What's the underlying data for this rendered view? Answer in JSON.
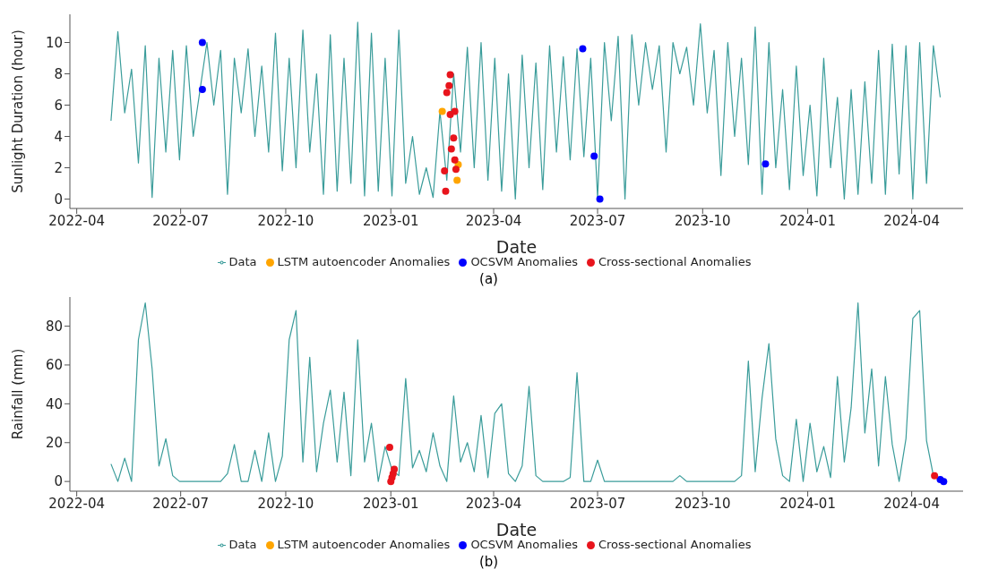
{
  "chart_data": [
    {
      "type": "line",
      "xlabel": "Date",
      "ylabel": "Sunlight Duration (hour)",
      "annotations": [
        "(a)"
      ],
      "xlim": [
        "2022-03-26",
        "2024-05-16"
      ],
      "xticks": [
        "2022-04",
        "2022-07",
        "2022-10",
        "2023-01",
        "2023-04",
        "2023-07",
        "2023-10",
        "2024-01",
        "2024-04"
      ],
      "ylim": [
        -0.6,
        11.8
      ],
      "yticks": [
        0,
        2,
        4,
        6,
        8,
        10
      ],
      "grid": false,
      "legend": "bottom",
      "x": [
        "2022-05-01",
        "2022-05-07",
        "2022-05-13",
        "2022-05-19",
        "2022-05-25",
        "2022-05-31",
        "2022-06-06",
        "2022-06-12",
        "2022-06-18",
        "2022-06-24",
        "2022-06-30",
        "2022-07-06",
        "2022-07-12",
        "2022-07-18",
        "2022-07-24",
        "2022-07-30",
        "2022-08-05",
        "2022-08-11",
        "2022-08-17",
        "2022-08-23",
        "2022-08-29",
        "2022-09-04",
        "2022-09-10",
        "2022-09-16",
        "2022-09-22",
        "2022-09-28",
        "2022-10-04",
        "2022-10-10",
        "2022-10-16",
        "2022-10-22",
        "2022-10-28",
        "2022-11-03",
        "2022-11-09",
        "2022-11-15",
        "2022-11-21",
        "2022-11-27",
        "2022-12-03",
        "2022-12-09",
        "2022-12-15",
        "2022-12-21",
        "2022-12-27",
        "2023-01-02",
        "2023-01-08",
        "2023-01-14",
        "2023-01-20",
        "2023-01-26",
        "2023-02-01",
        "2023-02-07",
        "2023-02-13",
        "2023-02-19",
        "2023-02-25",
        "2023-03-03",
        "2023-03-09",
        "2023-03-15",
        "2023-03-21",
        "2023-03-27",
        "2023-04-02",
        "2023-04-08",
        "2023-04-14",
        "2023-04-20",
        "2023-04-26",
        "2023-05-02",
        "2023-05-08",
        "2023-05-14",
        "2023-05-20",
        "2023-05-26",
        "2023-06-01",
        "2023-06-07",
        "2023-06-13",
        "2023-06-19",
        "2023-06-25",
        "2023-07-01",
        "2023-07-07",
        "2023-07-13",
        "2023-07-19",
        "2023-07-25",
        "2023-07-31",
        "2023-08-06",
        "2023-08-12",
        "2023-08-18",
        "2023-08-24",
        "2023-08-30",
        "2023-09-05",
        "2023-09-11",
        "2023-09-17",
        "2023-09-23",
        "2023-09-29",
        "2023-10-05",
        "2023-10-11",
        "2023-10-17",
        "2023-10-23",
        "2023-10-29",
        "2023-11-04",
        "2023-11-10",
        "2023-11-16",
        "2023-11-22",
        "2023-11-28",
        "2023-12-04",
        "2023-12-10",
        "2023-12-16",
        "2023-12-22",
        "2023-12-28",
        "2024-01-03",
        "2024-01-09",
        "2024-01-15",
        "2024-01-21",
        "2024-01-27",
        "2024-02-02",
        "2024-02-08",
        "2024-02-14",
        "2024-02-20",
        "2024-02-26",
        "2024-03-03",
        "2024-03-09",
        "2024-03-15",
        "2024-03-21",
        "2024-03-27",
        "2024-04-02",
        "2024-04-08",
        "2024-04-14",
        "2024-04-20",
        "2024-04-26"
      ],
      "series": [
        {
          "name": "Data",
          "color": "#3a9c9a",
          "marker": "none",
          "values": [
            5,
            10.7,
            5.5,
            8.3,
            2.3,
            9.8,
            0.1,
            9,
            3,
            9.5,
            2.5,
            9.8,
            4,
            7,
            10,
            6,
            9.5,
            0.3,
            9,
            5.5,
            9.6,
            4,
            8.5,
            3,
            10.6,
            1.8,
            9,
            2,
            10.8,
            3,
            8,
            0.3,
            10.5,
            0.5,
            9,
            1,
            11.3,
            0.2,
            10.6,
            0.5,
            9,
            0.2,
            10.8,
            1,
            4,
            0.3,
            2,
            0.1,
            5.6,
            1.2,
            8,
            3,
            9.7,
            2,
            10,
            1.2,
            9,
            0.5,
            8,
            0,
            9.2,
            2,
            8.7,
            0.6,
            9.8,
            3,
            9.1,
            2.5,
            9.6,
            2.7,
            9,
            0.1,
            10,
            5,
            10.4,
            0,
            10.5,
            6,
            10,
            7,
            9.8,
            3,
            10,
            8,
            9.7,
            6,
            11.2,
            5.5,
            9.5,
            1.5,
            10,
            4,
            9,
            2.2,
            11,
            0.3,
            10,
            2,
            7,
            0.6,
            8.5,
            1.5,
            6,
            0.2,
            9,
            2,
            6.5,
            0,
            7,
            0.3,
            7.5,
            1,
            9.5,
            0.3,
            9.9,
            1.6,
            9.8,
            0,
            10,
            1,
            9.8,
            6.5
          ]
        },
        {
          "name": "LSTM autoencoder Anomalies",
          "type": "scatter",
          "marker": "circle",
          "color": "#ffa500",
          "x": [
            "2023-02-15",
            "2023-03-01",
            "2023-02-28"
          ],
          "values": [
            5.6,
            2.2,
            1.2
          ]
        },
        {
          "name": "OCSVM Anomalies",
          "type": "scatter",
          "marker": "circle",
          "color": "#0000ff",
          "x": [
            "2022-07-20",
            "2022-07-20",
            "2023-06-18",
            "2023-06-28",
            "2023-07-03",
            "2023-11-25"
          ],
          "values": [
            10,
            7,
            9.6,
            2.75,
            0,
            2.25
          ]
        },
        {
          "name": "Cross-sectional Anomalies",
          "type": "scatter",
          "marker": "circle",
          "color": "#e8141c",
          "x": [
            "2023-02-22",
            "2023-02-21",
            "2023-02-19",
            "2023-02-22",
            "2023-02-26",
            "2023-02-25",
            "2023-02-23",
            "2023-02-26",
            "2023-02-27",
            "2023-02-17",
            "2023-02-18"
          ],
          "values": [
            7.95,
            7.25,
            6.8,
            5.4,
            5.6,
            3.9,
            3.2,
            2.5,
            1.9,
            1.8,
            0.5
          ]
        }
      ]
    },
    {
      "type": "line",
      "xlabel": "Date",
      "ylabel": "Rainfall (mm)",
      "annotations": [
        "(b)"
      ],
      "xlim": [
        "2022-03-26",
        "2024-05-16"
      ],
      "xticks": [
        "2022-04",
        "2022-07",
        "2022-10",
        "2023-01",
        "2023-04",
        "2023-07",
        "2023-10",
        "2024-01",
        "2024-04"
      ],
      "ylim": [
        -5,
        95
      ],
      "yticks": [
        0,
        20,
        40,
        60,
        80
      ],
      "grid": false,
      "legend": "bottom",
      "x": [
        "2022-05-01",
        "2022-05-07",
        "2022-05-13",
        "2022-05-19",
        "2022-05-25",
        "2022-05-31",
        "2022-06-06",
        "2022-06-12",
        "2022-06-18",
        "2022-06-24",
        "2022-06-30",
        "2022-07-06",
        "2022-07-12",
        "2022-07-18",
        "2022-07-24",
        "2022-07-30",
        "2022-08-05",
        "2022-08-11",
        "2022-08-17",
        "2022-08-23",
        "2022-08-29",
        "2022-09-04",
        "2022-09-10",
        "2022-09-16",
        "2022-09-22",
        "2022-09-28",
        "2022-10-04",
        "2022-10-10",
        "2022-10-16",
        "2022-10-22",
        "2022-10-28",
        "2022-11-03",
        "2022-11-09",
        "2022-11-15",
        "2022-11-21",
        "2022-11-27",
        "2022-12-03",
        "2022-12-09",
        "2022-12-15",
        "2022-12-21",
        "2022-12-27",
        "2023-01-02",
        "2023-01-08",
        "2023-01-14",
        "2023-01-20",
        "2023-01-26",
        "2023-02-01",
        "2023-02-07",
        "2023-02-13",
        "2023-02-19",
        "2023-02-25",
        "2023-03-03",
        "2023-03-09",
        "2023-03-15",
        "2023-03-21",
        "2023-03-27",
        "2023-04-02",
        "2023-04-08",
        "2023-04-14",
        "2023-04-20",
        "2023-04-26",
        "2023-05-02",
        "2023-05-08",
        "2023-05-14",
        "2023-05-20",
        "2023-05-26",
        "2023-06-01",
        "2023-06-07",
        "2023-06-13",
        "2023-06-19",
        "2023-06-25",
        "2023-07-01",
        "2023-07-07",
        "2023-07-13",
        "2023-07-19",
        "2023-07-25",
        "2023-07-31",
        "2023-08-06",
        "2023-08-12",
        "2023-08-18",
        "2023-08-24",
        "2023-08-30",
        "2023-09-05",
        "2023-09-11",
        "2023-09-17",
        "2023-09-23",
        "2023-09-29",
        "2023-10-05",
        "2023-10-11",
        "2023-10-17",
        "2023-10-23",
        "2023-10-29",
        "2023-11-04",
        "2023-11-10",
        "2023-11-16",
        "2023-11-22",
        "2023-11-28",
        "2023-12-04",
        "2023-12-10",
        "2023-12-16",
        "2023-12-22",
        "2023-12-28",
        "2024-01-03",
        "2024-01-09",
        "2024-01-15",
        "2024-01-21",
        "2024-01-27",
        "2024-02-02",
        "2024-02-08",
        "2024-02-14",
        "2024-02-20",
        "2024-02-26",
        "2024-03-03",
        "2024-03-09",
        "2024-03-15",
        "2024-03-21",
        "2024-03-27",
        "2024-04-02",
        "2024-04-08",
        "2024-04-14",
        "2024-04-20",
        "2024-04-26"
      ],
      "series": [
        {
          "name": "Data",
          "color": "#3a9c9a",
          "marker": "none",
          "values": [
            9,
            0,
            12,
            0,
            73,
            92,
            58,
            8,
            22,
            3,
            0,
            0,
            0,
            0,
            0,
            0,
            0,
            4,
            19,
            0,
            0,
            16,
            0,
            25,
            0,
            13,
            73,
            88,
            10,
            64,
            5,
            30,
            47,
            10,
            46,
            3,
            73,
            10,
            30,
            0,
            18,
            6,
            3,
            53,
            7,
            16,
            5,
            25,
            8,
            0,
            44,
            10,
            20,
            5,
            34,
            2,
            35,
            40,
            4,
            0,
            8,
            49,
            3,
            0,
            0,
            0,
            0,
            2,
            56,
            0,
            0,
            11,
            0,
            0,
            0,
            0,
            0,
            0,
            0,
            0,
            0,
            0,
            0,
            3,
            0,
            0,
            0,
            0,
            0,
            0,
            0,
            0,
            3,
            62,
            5,
            43,
            71,
            22,
            3,
            0,
            32,
            0,
            30,
            5,
            18,
            2,
            54,
            10,
            38,
            92,
            25,
            58,
            8,
            54,
            19,
            0,
            22,
            84,
            88,
            21,
            3,
            0
          ]
        },
        {
          "name": "LSTM autoencoder Anomalies",
          "type": "scatter",
          "marker": "circle",
          "color": "#ffa500",
          "values": [
            null,
            null,
            null,
            null,
            null,
            null,
            null,
            null,
            null,
            null,
            null,
            null,
            null,
            null,
            null,
            null,
            null,
            null,
            null,
            null,
            null,
            null,
            null,
            null,
            null,
            null,
            null,
            null,
            null,
            null,
            null,
            null,
            null,
            null,
            null,
            null,
            null,
            null,
            null,
            null,
            null,
            null,
            null,
            null,
            null,
            null,
            null,
            null,
            null,
            null,
            null,
            null,
            null,
            null,
            null,
            null,
            null,
            null,
            null,
            null,
            null,
            null,
            null,
            null,
            null,
            null,
            null,
            null,
            null,
            null,
            null,
            null,
            null,
            null,
            null,
            null,
            null,
            null,
            null,
            null,
            null,
            null,
            null,
            null,
            null,
            null,
            null,
            null,
            null,
            null,
            null,
            null,
            null,
            null,
            null,
            null,
            null,
            null,
            null,
            null,
            null,
            null,
            null,
            null,
            null,
            null,
            null,
            null,
            null,
            null,
            null,
            null,
            null,
            null,
            null,
            null,
            null,
            null,
            null,
            null,
            null,
            null
          ]
        },
        {
          "name": "OCSVM Anomalies",
          "type": "scatter",
          "marker": "circle",
          "color": "#0000ff",
          "x": [
            "2024-04-26",
            "2024-04-29"
          ],
          "values": [
            1,
            0
          ]
        },
        {
          "name": "Cross-sectional Anomalies",
          "type": "scatter",
          "marker": "circle",
          "color": "#e8141c",
          "x": [
            "2022-12-31",
            "2023-01-01",
            "2023-01-02",
            "2023-01-03",
            "2023-01-04",
            "2024-04-21"
          ],
          "values": [
            17.6,
            0,
            2,
            4,
            6.3,
            3
          ]
        }
      ]
    }
  ]
}
